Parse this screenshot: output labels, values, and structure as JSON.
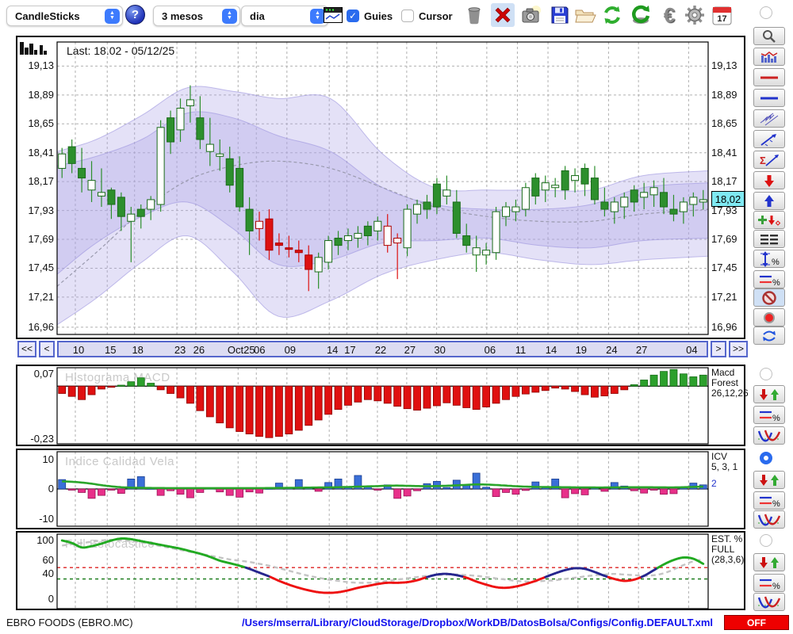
{
  "toolbar": {
    "chart_type_select": {
      "value": "CandleSticks"
    },
    "help_label": "?",
    "period_select": {
      "value": "3 mesos"
    },
    "interval_select": {
      "value": "dia"
    },
    "guies_checkbox": {
      "label": "Guies",
      "checked": true,
      "check_glyph": "✓"
    },
    "cursor_checkbox": {
      "label": "Cursor",
      "checked": false
    },
    "calendar_day": "17",
    "euro_glyph": "€",
    "icons": [
      "mini-chart-window",
      "trash",
      "delete-red-x",
      "camera-snapshot",
      "save-floppy",
      "open-folder",
      "refresh-circular",
      "refresh-s",
      "euro",
      "settings-gear",
      "calendar"
    ]
  },
  "main": {
    "last_label": "Last: 18.02 - 05/12/25",
    "price_tag": "18,02",
    "y_tick_labels": [
      "19,13",
      "18,89",
      "18,65",
      "18,41",
      "18,17",
      "17,93",
      "17,69",
      "17,45",
      "17,21",
      "16,96"
    ]
  },
  "scrollbar": {
    "buttons": [
      "<<",
      "<",
      ">",
      ">>"
    ]
  },
  "macd": {
    "watermark": "Histograma MACD",
    "top_label": "0,07",
    "bottom_label": "-0,23",
    "name_lines": [
      "Macd",
      "Forest",
      "26,12,26"
    ]
  },
  "icv": {
    "watermark": "Indice Calidad Vela",
    "tick_labels": [
      "10",
      "0",
      "-10"
    ],
    "name_lines": [
      "ICV",
      "5, 3, 1"
    ],
    "extra_value": "2"
  },
  "stoch": {
    "watermark": "Full Estocastico",
    "tick_labels": [
      "100",
      "60",
      "40",
      "0"
    ],
    "name_lines": [
      "EST. %",
      "FULL",
      "(28,3,6)"
    ]
  },
  "status": {
    "symbol": "EBRO FOODS (EBRO.MC)",
    "config_path": "/Users/mserra/Library/CloudStorage/Dropbox/WorkDB/DatosBolsa/Configs/Config.DEFAULT.xml",
    "toggle": "OFF"
  },
  "sidebar": {
    "tools": [
      "zoom",
      "chart-style",
      "red-line",
      "blue-line",
      "channel",
      "trend-arrow",
      "sigma-trend",
      "arrow-down-red",
      "arrow-up-blue",
      "add-markers",
      "levels-lines",
      "vertical-range-percent",
      "lines-percent",
      "disable",
      "record",
      "sync"
    ],
    "indicator_tools": [
      "enable-radio",
      "arrows-up-down",
      "percent-lines",
      "curves"
    ]
  },
  "colors": {
    "candle_up": "#2d8f2d",
    "candle_up_dark": "#1a6b1a",
    "candle_down": "#dd1111",
    "band_fill": "#aaa2e6",
    "band_edge": "#9b93dd",
    "midline": "#9a9aae",
    "macd_pos": "#2ca02c",
    "macd_neg": "#e01010",
    "icv_pos": "#3a6fd8",
    "icv_neg": "#e8308a",
    "icv_line": "#2aa52a",
    "stoch_high": "#22aa22",
    "stoch_mid": "#26268e",
    "stoch_low": "#ee1111",
    "stoch_signal": "#c4c4c4",
    "threshold_upper": "#dd2222",
    "threshold_lower": "#117711",
    "tag_bg": "#7fe9f2",
    "grid": "#b0b0b0",
    "accent_blue": "#3d7bfd",
    "path_blue": "#1111ee",
    "off_red": "#ee0000"
  },
  "chart_data": [
    {
      "type": "candlestick",
      "title": "EBRO FOODS (EBRO.MC)",
      "last": {
        "price": 18.02,
        "date": "05/12/25"
      },
      "ylim": [
        16.96,
        19.13
      ],
      "y_grid_prices": [
        19.13,
        18.89,
        18.65,
        18.41,
        18.17,
        17.93,
        17.69,
        17.45,
        17.21,
        16.96
      ],
      "x_dates": [
        {
          "label": "10",
          "f": 0.028
        },
        {
          "label": "15",
          "f": 0.077
        },
        {
          "label": "18",
          "f": 0.119
        },
        {
          "label": "23",
          "f": 0.184
        },
        {
          "label": "26",
          "f": 0.213
        },
        {
          "label": "Oct25",
          "f": 0.278
        },
        {
          "label": "06",
          "f": 0.306
        },
        {
          "label": "09",
          "f": 0.353
        },
        {
          "label": "14",
          "f": 0.418
        },
        {
          "label": "17",
          "f": 0.445
        },
        {
          "label": "22",
          "f": 0.492
        },
        {
          "label": "27",
          "f": 0.537
        },
        {
          "label": "30",
          "f": 0.583
        },
        {
          "label": "06",
          "f": 0.66
        },
        {
          "label": "11",
          "f": 0.707
        },
        {
          "label": "14",
          "f": 0.754
        },
        {
          "label": "19",
          "f": 0.8
        },
        {
          "label": "24",
          "f": 0.847
        },
        {
          "label": "27",
          "f": 0.893
        },
        {
          "label": "04",
          "f": 0.97
        }
      ],
      "candles": [
        [
          18.28,
          18.45,
          18.2,
          18.4,
          "gh"
        ],
        [
          18.32,
          18.52,
          18.24,
          18.46,
          "gs"
        ],
        [
          18.2,
          18.45,
          18.08,
          18.28,
          "gs"
        ],
        [
          18.1,
          18.34,
          18.0,
          18.18,
          "gh"
        ],
        [
          18.05,
          18.28,
          17.96,
          18.08,
          "gh"
        ],
        [
          17.98,
          18.12,
          17.86,
          18.1,
          "gs"
        ],
        [
          17.88,
          18.08,
          17.76,
          18.04,
          "gs"
        ],
        [
          17.84,
          17.96,
          17.5,
          17.9,
          "gh"
        ],
        [
          17.88,
          17.98,
          17.78,
          17.94,
          "gs"
        ],
        [
          17.94,
          18.05,
          17.85,
          18.02,
          "gh"
        ],
        [
          17.98,
          18.68,
          17.92,
          18.62,
          "gh"
        ],
        [
          18.5,
          18.76,
          18.4,
          18.7,
          "gs"
        ],
        [
          18.6,
          18.86,
          18.5,
          18.78,
          "gh"
        ],
        [
          18.8,
          18.97,
          18.66,
          18.85,
          "gh"
        ],
        [
          18.7,
          18.88,
          18.44,
          18.52,
          "gs"
        ],
        [
          18.48,
          18.7,
          18.3,
          18.42,
          "gh"
        ],
        [
          18.4,
          18.52,
          18.26,
          18.38,
          "gh"
        ],
        [
          18.36,
          18.46,
          18.08,
          18.14,
          "gs"
        ],
        [
          18.28,
          18.38,
          17.92,
          17.96,
          "gs"
        ],
        [
          17.94,
          18.04,
          17.56,
          17.76,
          "gs"
        ],
        [
          17.78,
          17.92,
          17.68,
          17.84,
          "rh"
        ],
        [
          17.86,
          17.94,
          17.52,
          17.6,
          "rs"
        ],
        [
          17.64,
          17.74,
          17.56,
          17.66,
          "rs"
        ],
        [
          17.62,
          17.72,
          17.54,
          17.62,
          "rs"
        ],
        [
          17.6,
          17.68,
          17.5,
          17.58,
          "rs"
        ],
        [
          17.56,
          17.64,
          17.26,
          17.44,
          "rs"
        ],
        [
          17.42,
          17.58,
          17.28,
          17.54,
          "gh"
        ],
        [
          17.5,
          17.72,
          17.44,
          17.68,
          "gh"
        ],
        [
          17.64,
          17.76,
          17.56,
          17.7,
          "gs"
        ],
        [
          17.68,
          17.78,
          17.6,
          17.72,
          "gh"
        ],
        [
          17.7,
          17.8,
          17.62,
          17.74,
          "gh"
        ],
        [
          17.72,
          17.84,
          17.64,
          17.8,
          "gs"
        ],
        [
          17.76,
          17.88,
          17.68,
          17.84,
          "gh"
        ],
        [
          17.8,
          17.9,
          17.58,
          17.64,
          "rh"
        ],
        [
          17.66,
          17.74,
          17.36,
          17.7,
          "rh"
        ],
        [
          17.62,
          17.98,
          17.55,
          17.94,
          "gh"
        ],
        [
          17.9,
          18.02,
          17.82,
          17.98,
          "gh"
        ],
        [
          17.94,
          18.06,
          17.86,
          18.0,
          "gs"
        ],
        [
          17.96,
          18.2,
          17.9,
          18.15,
          "gs"
        ],
        [
          18.1,
          18.22,
          17.98,
          18.05,
          "gh"
        ],
        [
          18.0,
          18.1,
          17.7,
          17.74,
          "gs"
        ],
        [
          17.72,
          17.82,
          17.58,
          17.64,
          "gs"
        ],
        [
          17.62,
          17.72,
          17.42,
          17.56,
          "gh"
        ],
        [
          17.56,
          17.66,
          17.48,
          17.6,
          "gh"
        ],
        [
          17.58,
          17.96,
          17.52,
          17.92,
          "gh"
        ],
        [
          17.88,
          18.0,
          17.8,
          17.96,
          "gh"
        ],
        [
          17.92,
          18.02,
          17.84,
          17.96,
          "gh"
        ],
        [
          17.94,
          18.16,
          17.88,
          18.12,
          "gh"
        ],
        [
          18.05,
          18.24,
          17.98,
          18.2,
          "gs"
        ],
        [
          18.1,
          18.22,
          18.0,
          18.16,
          "gh"
        ],
        [
          18.12,
          18.2,
          18.04,
          18.14,
          "gh"
        ],
        [
          18.1,
          18.3,
          18.02,
          18.26,
          "gs"
        ],
        [
          18.18,
          18.28,
          18.08,
          18.22,
          "gh"
        ],
        [
          18.15,
          18.32,
          18.05,
          18.28,
          "gs"
        ],
        [
          18.2,
          18.3,
          17.98,
          18.02,
          "gs"
        ],
        [
          18.0,
          18.12,
          17.88,
          17.94,
          "gs"
        ],
        [
          17.92,
          18.04,
          17.82,
          18.0,
          "gh"
        ],
        [
          17.96,
          18.08,
          17.86,
          18.04,
          "gh"
        ],
        [
          18.0,
          18.14,
          17.92,
          18.1,
          "gs"
        ],
        [
          18.04,
          18.16,
          17.94,
          18.08,
          "gh"
        ],
        [
          18.06,
          18.18,
          17.96,
          18.12,
          "gh"
        ],
        [
          18.08,
          18.2,
          17.9,
          17.96,
          "gs"
        ],
        [
          17.94,
          18.06,
          17.84,
          17.9,
          "gs"
        ],
        [
          17.92,
          18.04,
          17.82,
          18.0,
          "gh"
        ],
        [
          17.98,
          18.08,
          17.88,
          18.04,
          "gh"
        ],
        [
          18.0,
          18.1,
          17.94,
          18.02,
          "gh"
        ]
      ],
      "bands": {
        "f": [
          0,
          0.06,
          0.13,
          0.2,
          0.27,
          0.34,
          0.42,
          0.5,
          0.58,
          0.66,
          0.74,
          0.82,
          0.9,
          1.0
        ],
        "outer_upper": [
          18.42,
          18.52,
          18.72,
          18.95,
          18.92,
          18.86,
          18.86,
          18.4,
          18.12,
          18.1,
          18.1,
          18.1,
          18.22,
          18.26
        ],
        "outer_lower": [
          16.98,
          17.2,
          17.5,
          17.72,
          17.42,
          17.05,
          17.18,
          17.4,
          17.52,
          17.58,
          17.52,
          17.48,
          17.52,
          17.55
        ],
        "inner_upper": [
          18.3,
          18.38,
          18.52,
          18.74,
          18.7,
          18.55,
          18.42,
          18.12,
          17.98,
          17.94,
          17.94,
          17.98,
          18.12,
          18.16
        ],
        "inner_lower": [
          17.4,
          17.66,
          17.88,
          18.0,
          17.78,
          17.48,
          17.52,
          17.66,
          17.68,
          17.7,
          17.64,
          17.62,
          17.68,
          17.7
        ],
        "midline": [
          17.3,
          17.58,
          17.92,
          18.18,
          18.3,
          18.34,
          18.28,
          18.12,
          17.96,
          17.88,
          17.84,
          17.84,
          17.9,
          17.94
        ]
      }
    },
    {
      "type": "bar",
      "name": "Histograma MACD",
      "params": "26,12,26",
      "ylim": [
        -0.23,
        0.07
      ],
      "values": [
        -0.03,
        -0.042,
        -0.055,
        -0.035,
        -0.012,
        -0.004,
        0.004,
        0.018,
        0.034,
        0.012,
        -0.015,
        -0.03,
        -0.048,
        -0.07,
        -0.1,
        -0.125,
        -0.15,
        -0.17,
        -0.185,
        -0.195,
        -0.205,
        -0.21,
        -0.205,
        -0.195,
        -0.18,
        -0.16,
        -0.138,
        -0.115,
        -0.095,
        -0.078,
        -0.065,
        -0.055,
        -0.06,
        -0.07,
        -0.082,
        -0.092,
        -0.098,
        -0.09,
        -0.08,
        -0.068,
        -0.078,
        -0.088,
        -0.095,
        -0.085,
        -0.07,
        -0.055,
        -0.042,
        -0.032,
        -0.025,
        -0.018,
        -0.008,
        -0.012,
        -0.022,
        -0.035,
        -0.045,
        -0.04,
        -0.03,
        -0.015,
        0.006,
        0.025,
        0.045,
        0.06,
        0.068,
        0.05,
        0.038,
        0.045
      ]
    },
    {
      "type": "bar+line",
      "name": "Indice Calidad Vela",
      "params": "5, 3, 1",
      "extra": "2",
      "ylim": [
        -10,
        10
      ],
      "bar_values": [
        3.2,
        -0.3,
        -1.2,
        -3.2,
        -2.2,
        -0.4,
        -1.5,
        3.4,
        4.2,
        0.3,
        -2.2,
        -0.6,
        -1.8,
        -3.0,
        -1.2,
        0.4,
        -1.0,
        -2.2,
        -2.8,
        -1.0,
        -1.4,
        0.3,
        2.0,
        0.5,
        3.2,
        0.4,
        -0.8,
        2.2,
        3.4,
        0.6,
        4.6,
        0.8,
        -0.4,
        1.4,
        -3.2,
        -2.4,
        -0.6,
        1.8,
        2.6,
        0.5,
        3.0,
        1.2,
        5.4,
        0.6,
        -2.6,
        -1.2,
        -1.8,
        -0.5,
        2.4,
        0.8,
        3.4,
        -3.0,
        -1.6,
        -2.0,
        0.4,
        -0.8,
        2.2,
        1.0,
        -0.6,
        -1.4,
        -0.4,
        -1.8,
        -1.6,
        0.5,
        2.0,
        1.4
      ],
      "line_values": [
        2.6,
        2.45,
        2.2,
        1.8,
        1.3,
        0.9,
        0.6,
        0.45,
        0.38,
        0.34,
        0.32,
        0.3,
        0.3,
        0.3,
        0.3,
        0.3,
        0.3,
        0.3,
        0.3,
        0.3,
        0.3,
        0.32,
        0.35,
        0.38,
        0.42,
        0.46,
        0.5,
        0.55,
        0.6,
        0.68,
        0.78,
        0.88,
        0.98,
        1.1,
        1.15,
        1.08,
        1.0,
        0.95,
        1.0,
        1.1,
        1.25,
        1.4,
        1.55,
        1.5,
        1.35,
        1.15,
        0.95,
        0.8,
        0.7,
        0.65,
        0.62,
        0.6,
        0.56,
        0.52,
        0.5,
        0.5,
        0.54,
        0.58,
        0.6,
        0.6,
        0.58,
        0.56,
        0.55,
        0.6,
        0.7,
        0.8
      ]
    },
    {
      "type": "line",
      "name": "Full Estocastico",
      "params": "(28,3,6)",
      "ylim": [
        0,
        100
      ],
      "thresholds": {
        "upper": 57,
        "lower": 39
      },
      "main": [
        100,
        96,
        89,
        91,
        95,
        100,
        103,
        102,
        99,
        96,
        93,
        90,
        87,
        83,
        79,
        74,
        68,
        64,
        60,
        55,
        49,
        43,
        36,
        30,
        25,
        21,
        18,
        17,
        18,
        21,
        25,
        28,
        31,
        33,
        33,
        34,
        37,
        42,
        46,
        47,
        45,
        41,
        35,
        30,
        26,
        25,
        27,
        31,
        36,
        42,
        48,
        53,
        56,
        55,
        50,
        44,
        39,
        36,
        38,
        44,
        53,
        62,
        69,
        73,
        71,
        63
      ],
      "signal": [
        92,
        94,
        96,
        98,
        100,
        101,
        100,
        99,
        97,
        94,
        91,
        88,
        85,
        82,
        79,
        76,
        73,
        70,
        68,
        66,
        63,
        60,
        56,
        52,
        48,
        44,
        41,
        38,
        36,
        34,
        33,
        33,
        34,
        36,
        38,
        40,
        42,
        44,
        45,
        46,
        46,
        45,
        44,
        42,
        40,
        38,
        36,
        35,
        35,
        36,
        37,
        39,
        41,
        43,
        45,
        46,
        47,
        46,
        45,
        44,
        45,
        48,
        54,
        61,
        67,
        70
      ]
    }
  ]
}
